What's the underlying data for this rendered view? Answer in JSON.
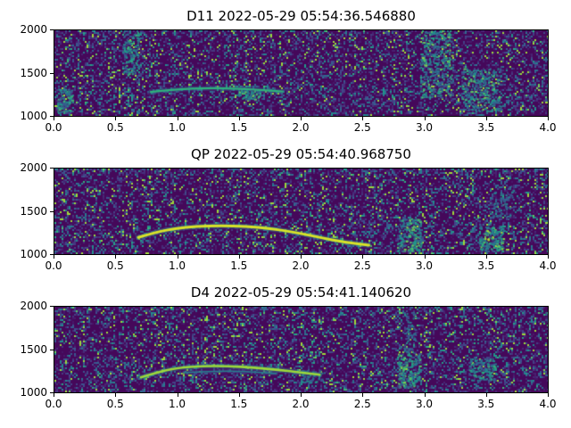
{
  "figure": {
    "background": "#ffffff",
    "colormap": "viridis",
    "low_color": "#440154",
    "high_color": "#fde725"
  },
  "chart_data": [
    {
      "type": "heatmap",
      "title": "D11 2022-05-29 05:54:36.546880",
      "xlim": [
        0.0,
        4.0
      ],
      "ylim": [
        1000,
        2000
      ],
      "xtick_labels": [
        "0.0",
        "0.5",
        "1.0",
        "1.5",
        "2.0",
        "2.5",
        "3.0",
        "3.5",
        "4.0"
      ],
      "ytick_labels": [
        "2000",
        "1500",
        "1000"
      ],
      "seed": 29,
      "speckle": 0.085,
      "bands": [
        {
          "y": [
            1880,
            2000
          ],
          "boost": 0.22
        },
        {
          "y": [
            1000,
            1480
          ],
          "boost": 0.18
        },
        {
          "y": [
            1230,
            1360
          ],
          "boost": 0.12
        }
      ],
      "bursts": [
        {
          "x": [
            0.02,
            0.14
          ],
          "y": [
            1040,
            1320
          ],
          "n": 90,
          "v": [
            0.35,
            0.85
          ]
        },
        {
          "x": [
            0.55,
            0.68
          ],
          "y": [
            1480,
            2000
          ],
          "n": 110,
          "v": [
            0.35,
            0.85
          ]
        },
        {
          "x": [
            1.48,
            1.66
          ],
          "y": [
            1200,
            1310
          ],
          "n": 60,
          "v": [
            0.45,
            0.9
          ]
        },
        {
          "x": [
            2.95,
            3.22
          ],
          "y": [
            1220,
            2000
          ],
          "n": 300,
          "v": [
            0.35,
            0.92
          ]
        },
        {
          "x": [
            3.3,
            3.62
          ],
          "y": [
            1060,
            1560
          ],
          "n": 260,
          "v": [
            0.35,
            0.92
          ]
        }
      ],
      "contours": [
        {
          "points": [
            [
              0.78,
              1280
            ],
            [
              1.0,
              1315
            ],
            [
              1.25,
              1325
            ],
            [
              1.5,
              1320
            ],
            [
              1.7,
              1300
            ],
            [
              1.85,
              1285
            ]
          ],
          "width": 2.2,
          "v": 0.82
        }
      ]
    },
    {
      "type": "heatmap",
      "title": "QP 2022-05-29 05:54:40.968750",
      "xlim": [
        0.0,
        4.0
      ],
      "ylim": [
        1000,
        2000
      ],
      "xtick_labels": [
        "0.0",
        "0.5",
        "1.0",
        "1.5",
        "2.0",
        "2.5",
        "3.0",
        "3.5",
        "4.0"
      ],
      "ytick_labels": [
        "2000",
        "1500",
        "1000"
      ],
      "seed": 57,
      "speckle": 0.06,
      "bands": [
        {
          "y": [
            1920,
            2000
          ],
          "boost": 0.5
        },
        {
          "y": [
            1000,
            1360
          ],
          "boost": 0.26
        },
        {
          "y": [
            1360,
            1520
          ],
          "boost": 0.08
        }
      ],
      "bursts": [
        {
          "x": [
            2.78,
            2.97
          ],
          "y": [
            1040,
            1420
          ],
          "n": 170,
          "v": [
            0.4,
            0.9
          ]
        },
        {
          "x": [
            3.44,
            3.64
          ],
          "y": [
            1040,
            1330
          ],
          "n": 150,
          "v": [
            0.45,
            0.95
          ]
        },
        {
          "x": [
            3.52,
            3.72
          ],
          "y": [
            1430,
            1800
          ],
          "n": 70,
          "v": [
            0.3,
            0.7
          ]
        }
      ],
      "contours": [
        {
          "points": [
            [
              0.68,
              1195
            ],
            [
              0.82,
              1255
            ],
            [
              0.98,
              1300
            ],
            [
              1.15,
              1325
            ],
            [
              1.35,
              1333
            ],
            [
              1.55,
              1325
            ],
            [
              1.75,
              1300
            ],
            [
              1.95,
              1255
            ],
            [
              2.15,
              1195
            ],
            [
              2.35,
              1140
            ],
            [
              2.55,
              1105
            ]
          ],
          "width": 3,
          "v": 0.97
        }
      ]
    },
    {
      "type": "heatmap",
      "title": "D4 2022-05-29 05:54:41.140620",
      "xlim": [
        0.0,
        4.0
      ],
      "ylim": [
        1000,
        2000
      ],
      "xtick_labels": [
        "0.0",
        "0.5",
        "1.0",
        "1.5",
        "2.0",
        "2.5",
        "3.0",
        "3.5",
        "4.0"
      ],
      "ytick_labels": [
        "2000",
        "1500",
        "1000"
      ],
      "seed": 63,
      "speckle": 0.07,
      "bands": [
        {
          "y": [
            1920,
            2000
          ],
          "boost": 0.42
        },
        {
          "y": [
            1000,
            1420
          ],
          "boost": 0.24
        }
      ],
      "bursts": [
        {
          "x": [
            2.78,
            2.96
          ],
          "y": [
            1070,
            1460
          ],
          "n": 170,
          "v": [
            0.4,
            0.93
          ]
        },
        {
          "x": [
            2.83,
            2.93
          ],
          "y": [
            1460,
            1930
          ],
          "n": 55,
          "v": [
            0.3,
            0.68
          ]
        },
        {
          "x": [
            3.36,
            3.58
          ],
          "y": [
            1140,
            1400
          ],
          "n": 110,
          "v": [
            0.38,
            0.85
          ]
        },
        {
          "x": [
            2.0,
            2.2
          ],
          "y": [
            1120,
            1260
          ],
          "n": 50,
          "v": [
            0.35,
            0.8
          ]
        }
      ],
      "contours": [
        {
          "points": [
            [
              0.7,
              1175
            ],
            [
              0.85,
              1240
            ],
            [
              1.0,
              1285
            ],
            [
              1.2,
              1308
            ],
            [
              1.4,
              1308
            ],
            [
              1.62,
              1288
            ],
            [
              1.82,
              1262
            ],
            [
              2.0,
              1232
            ],
            [
              2.15,
              1205
            ]
          ],
          "width": 2.6,
          "v": 0.92
        },
        {
          "points": [
            [
              1.05,
              1230
            ],
            [
              1.3,
              1250
            ],
            [
              1.55,
              1245
            ],
            [
              1.8,
              1220
            ]
          ],
          "width": 1.6,
          "v": 0.6
        }
      ]
    }
  ]
}
